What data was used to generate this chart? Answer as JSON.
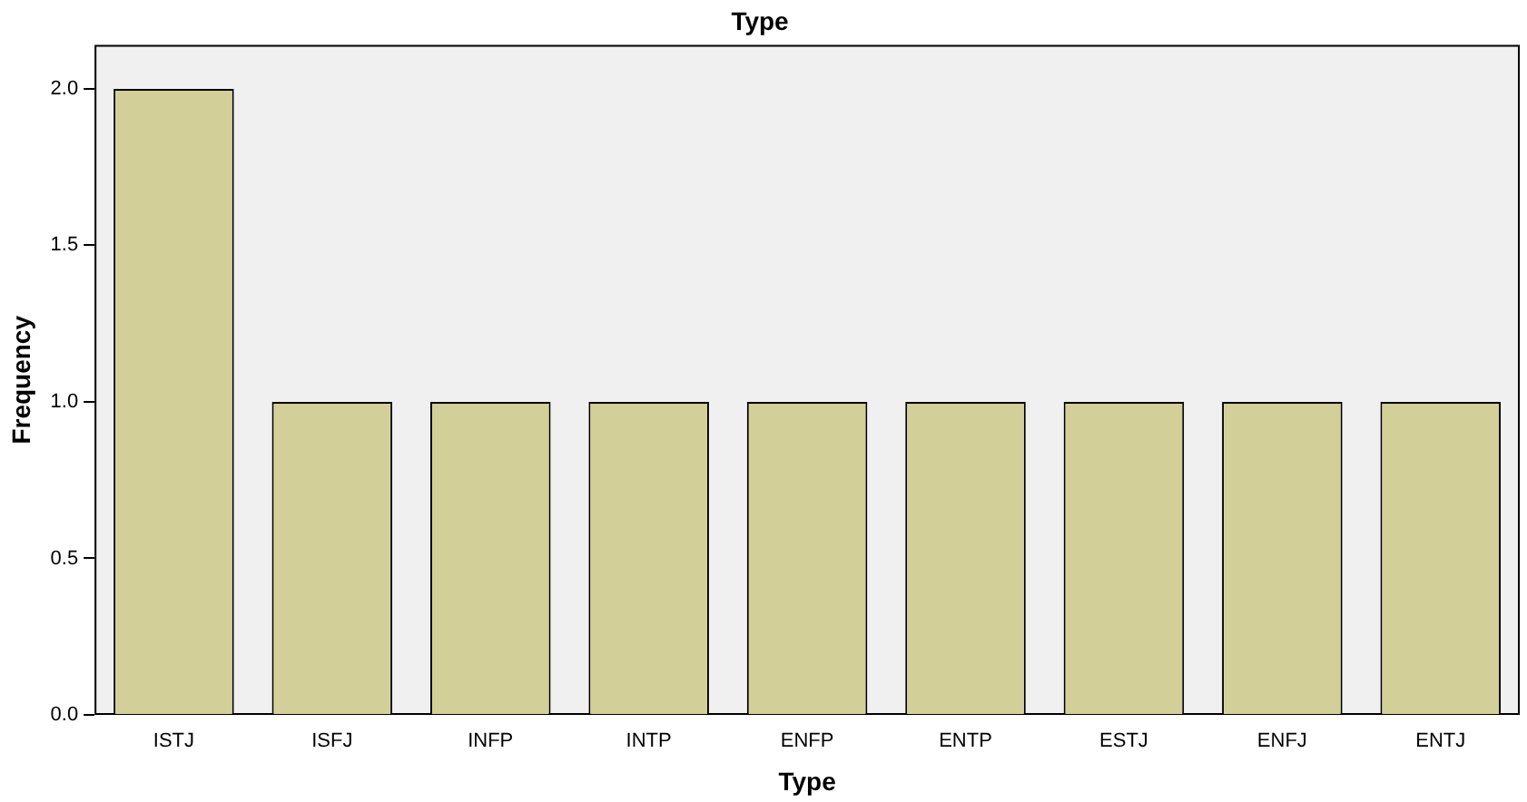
{
  "chart_data": {
    "type": "bar",
    "title": "Type",
    "xlabel": "Type",
    "ylabel": "Frequency",
    "categories": [
      "ISTJ",
      "ISFJ",
      "INFP",
      "INTP",
      "ENFP",
      "ENTP",
      "ESTJ",
      "ENFJ",
      "ENTJ"
    ],
    "values": [
      2,
      1,
      1,
      1,
      1,
      1,
      1,
      1,
      1
    ],
    "color": "#d3cf98",
    "ylim": [
      0,
      2.14
    ],
    "yticks": [
      {
        "value": 0,
        "label": "0.0"
      },
      {
        "value": 0.5,
        "label": "0.5"
      },
      {
        "value": 1,
        "label": "1.0"
      },
      {
        "value": 1.5,
        "label": "1.5"
      },
      {
        "value": 2,
        "label": "2.0"
      }
    ],
    "grid": false,
    "legend": false
  }
}
